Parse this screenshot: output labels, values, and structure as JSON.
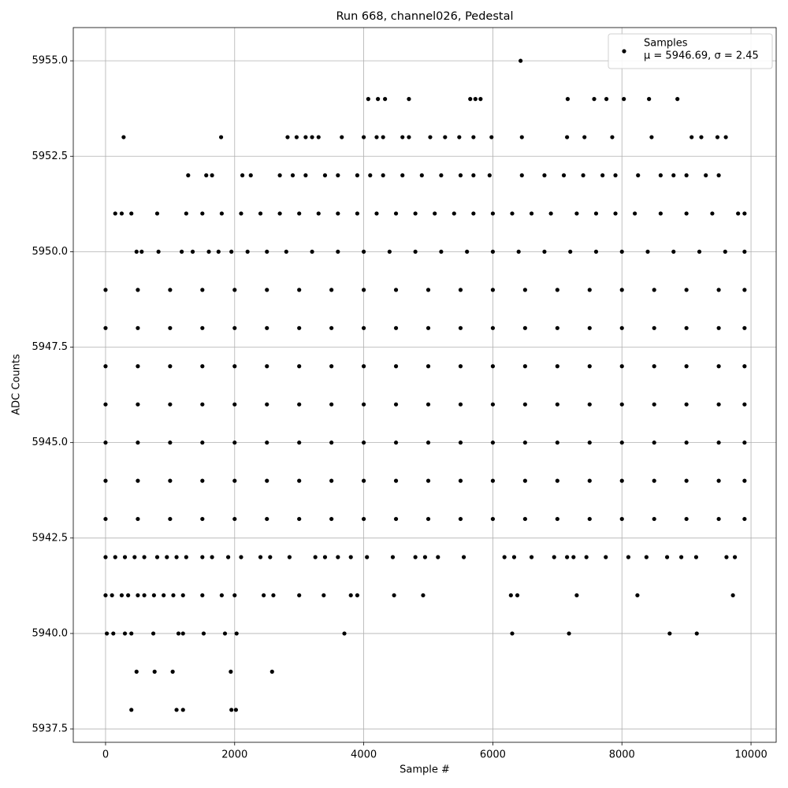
{
  "chart_data": {
    "type": "scatter",
    "title": "Run 668, channel026, Pedestal",
    "x_label": "Sample #",
    "y_label": "ADC Counts",
    "xlim": [
      -500,
      10390
    ],
    "ylim": [
      5937.15,
      5955.87
    ],
    "xticks": [
      0,
      2000,
      4000,
      6000,
      8000,
      10000
    ],
    "yticks": [
      5937.5,
      {
        "value": 5940,
        "label": "5940.0"
      },
      5942.5,
      {
        "value": 5945,
        "label": "5945.0"
      },
      5947.5,
      {
        "value": 5950,
        "label": "5950.0"
      },
      5952.5,
      {
        "value": 5955,
        "label": "5955.0"
      }
    ],
    "grid": true,
    "legend": "upper right",
    "legend_note": "μ = 5946.69, σ = 2.45",
    "series": [
      {
        "name": "Samples",
        "color": "#000000",
        "x": [
          0,
          500,
          1000,
          1500,
          2000,
          2500,
          3000,
          3500,
          4000,
          4500,
          5000,
          5500,
          6000,
          6500,
          7000,
          7500,
          8000,
          8500,
          9000,
          9500,
          9900,
          0,
          500,
          1000,
          1500,
          2000,
          2500,
          3000,
          3500,
          4000,
          4500,
          5000,
          5500,
          6000,
          6500,
          7000,
          7500,
          8000,
          8500,
          9000,
          9500,
          9900,
          0,
          500,
          1000,
          1500,
          2000,
          2500,
          3000,
          3500,
          4000,
          4500,
          5000,
          5500,
          6000,
          6500,
          7000,
          7500,
          8000,
          8500,
          9000,
          9500,
          9900,
          0,
          500,
          1000,
          1500,
          2000,
          2500,
          3000,
          3500,
          4000,
          4500,
          5000,
          5500,
          6000,
          6500,
          7000,
          7500,
          8000,
          8500,
          9000,
          9500,
          9900,
          0,
          500,
          1000,
          1500,
          2000,
          2500,
          3000,
          3500,
          4000,
          4500,
          5000,
          5500,
          6000,
          6500,
          7000,
          7500,
          8000,
          8500,
          9000,
          9500,
          9900,
          0,
          500,
          1000,
          1500,
          2000,
          2500,
          3000,
          3500,
          4000,
          4500,
          5000,
          5500,
          6000,
          6500,
          7000,
          7500,
          8000,
          8500,
          9000,
          9500,
          9900,
          0,
          500,
          1000,
          1500,
          2000,
          2500,
          3000,
          3500,
          4000,
          4500,
          5000,
          5500,
          6000,
          6500,
          7000,
          7500,
          8000,
          8500,
          9000,
          9500,
          9900,
          480,
          560,
          820,
          1180,
          1350,
          1600,
          1750,
          1950,
          2200,
          2500,
          2800,
          3200,
          3600,
          4000,
          4400,
          4800,
          5200,
          5600,
          6000,
          6400,
          6800,
          7200,
          7600,
          8000,
          8400,
          8800,
          9200,
          9600,
          9900,
          150,
          250,
          400,
          800,
          1250,
          1500,
          1800,
          2100,
          2400,
          2700,
          3000,
          3300,
          3600,
          3900,
          4200,
          4500,
          4800,
          5100,
          5400,
          5700,
          6000,
          6300,
          6600,
          6900,
          7300,
          7600,
          7900,
          8200,
          8600,
          9000,
          9400,
          9800,
          9900,
          1280,
          1560,
          1650,
          2120,
          2250,
          2700,
          2900,
          3100,
          3400,
          3600,
          3900,
          4100,
          4300,
          4600,
          4900,
          5200,
          5500,
          5700,
          5950,
          6450,
          6800,
          7100,
          7400,
          7700,
          7900,
          8250,
          8600,
          8800,
          9000,
          9300,
          9500,
          280,
          1790,
          2820,
          2960,
          3100,
          3200,
          3300,
          3660,
          4000,
          4200,
          4300,
          4600,
          4700,
          5030,
          5260,
          5480,
          5700,
          5980,
          6450,
          7150,
          7420,
          7850,
          8460,
          9080,
          9230,
          9480,
          9610,
          4070,
          4220,
          4330,
          4700,
          5650,
          5730,
          5810,
          7160,
          7570,
          7760,
          8030,
          8420,
          8860,
          6430,
          0,
          150,
          300,
          450,
          600,
          800,
          950,
          1100,
          1250,
          1500,
          1650,
          1900,
          2100,
          2400,
          2550,
          2850,
          3250,
          3400,
          3600,
          3800,
          4050,
          4450,
          4800,
          4950,
          5150,
          5550,
          6180,
          6330,
          6600,
          6950,
          7150,
          7250,
          7450,
          7750,
          8100,
          8380,
          8700,
          8920,
          9150,
          9620,
          9750,
          0,
          100,
          250,
          350,
          500,
          600,
          750,
          900,
          1050,
          1200,
          1500,
          1800,
          2000,
          2450,
          2600,
          3000,
          3380,
          3800,
          3900,
          4470,
          4920,
          6280,
          6380,
          7300,
          8240,
          9720,
          20,
          120,
          300,
          400,
          740,
          1130,
          1200,
          1520,
          1850,
          2030,
          3700,
          6300,
          7180,
          8740,
          9160,
          480,
          760,
          1040,
          1940,
          2580,
          400,
          1100,
          1200,
          1950,
          2020
        ],
        "values": [
          5943,
          5943,
          5943,
          5943,
          5943,
          5943,
          5943,
          5943,
          5943,
          5943,
          5943,
          5943,
          5943,
          5943,
          5943,
          5943,
          5943,
          5943,
          5943,
          5943,
          5943,
          5944,
          5944,
          5944,
          5944,
          5944,
          5944,
          5944,
          5944,
          5944,
          5944,
          5944,
          5944,
          5944,
          5944,
          5944,
          5944,
          5944,
          5944,
          5944,
          5944,
          5944,
          5945,
          5945,
          5945,
          5945,
          5945,
          5945,
          5945,
          5945,
          5945,
          5945,
          5945,
          5945,
          5945,
          5945,
          5945,
          5945,
          5945,
          5945,
          5945,
          5945,
          5945,
          5946,
          5946,
          5946,
          5946,
          5946,
          5946,
          5946,
          5946,
          5946,
          5946,
          5946,
          5946,
          5946,
          5946,
          5946,
          5946,
          5946,
          5946,
          5946,
          5946,
          5946,
          5947,
          5947,
          5947,
          5947,
          5947,
          5947,
          5947,
          5947,
          5947,
          5947,
          5947,
          5947,
          5947,
          5947,
          5947,
          5947,
          5947,
          5947,
          5947,
          5947,
          5947,
          5948,
          5948,
          5948,
          5948,
          5948,
          5948,
          5948,
          5948,
          5948,
          5948,
          5948,
          5948,
          5948,
          5948,
          5948,
          5948,
          5948,
          5948,
          5948,
          5948,
          5948,
          5949,
          5949,
          5949,
          5949,
          5949,
          5949,
          5949,
          5949,
          5949,
          5949,
          5949,
          5949,
          5949,
          5949,
          5949,
          5949,
          5949,
          5949,
          5949,
          5949,
          5949,
          5950,
          5950,
          5950,
          5950,
          5950,
          5950,
          5950,
          5950,
          5950,
          5950,
          5950,
          5950,
          5950,
          5950,
          5950,
          5950,
          5950,
          5950,
          5950,
          5950,
          5950,
          5950,
          5950,
          5950,
          5950,
          5950,
          5950,
          5950,
          5950,
          5951,
          5951,
          5951,
          5951,
          5951,
          5951,
          5951,
          5951,
          5951,
          5951,
          5951,
          5951,
          5951,
          5951,
          5951,
          5951,
          5951,
          5951,
          5951,
          5951,
          5951,
          5951,
          5951,
          5951,
          5951,
          5951,
          5951,
          5951,
          5951,
          5951,
          5951,
          5951,
          5951,
          5952,
          5952,
          5952,
          5952,
          5952,
          5952,
          5952,
          5952,
          5952,
          5952,
          5952,
          5952,
          5952,
          5952,
          5952,
          5952,
          5952,
          5952,
          5952,
          5952,
          5952,
          5952,
          5952,
          5952,
          5952,
          5952,
          5952,
          5952,
          5952,
          5952,
          5952,
          5953,
          5953,
          5953,
          5953,
          5953,
          5953,
          5953,
          5953,
          5953,
          5953,
          5953,
          5953,
          5953,
          5953,
          5953,
          5953,
          5953,
          5953,
          5953,
          5953,
          5953,
          5953,
          5953,
          5953,
          5953,
          5953,
          5953,
          5954,
          5954,
          5954,
          5954,
          5954,
          5954,
          5954,
          5954,
          5954,
          5954,
          5954,
          5954,
          5954,
          5955,
          5942,
          5942,
          5942,
          5942,
          5942,
          5942,
          5942,
          5942,
          5942,
          5942,
          5942,
          5942,
          5942,
          5942,
          5942,
          5942,
          5942,
          5942,
          5942,
          5942,
          5942,
          5942,
          5942,
          5942,
          5942,
          5942,
          5942,
          5942,
          5942,
          5942,
          5942,
          5942,
          5942,
          5942,
          5942,
          5942,
          5942,
          5942,
          5942,
          5942,
          5942,
          5941,
          5941,
          5941,
          5941,
          5941,
          5941,
          5941,
          5941,
          5941,
          5941,
          5941,
          5941,
          5941,
          5941,
          5941,
          5941,
          5941,
          5941,
          5941,
          5941,
          5941,
          5941,
          5941,
          5941,
          5941,
          5941,
          5940,
          5940,
          5940,
          5940,
          5940,
          5940,
          5940,
          5940,
          5940,
          5940,
          5940,
          5940,
          5940,
          5940,
          5940,
          5939,
          5939,
          5939,
          5939,
          5939,
          5938,
          5938,
          5938,
          5938,
          5938
        ]
      }
    ]
  }
}
